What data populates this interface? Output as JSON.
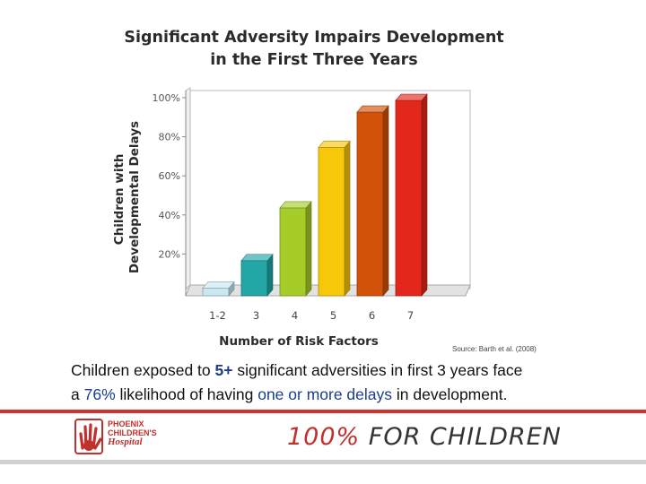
{
  "chart_data": {
    "type": "bar",
    "title": [
      "Significant Adversity Impairs Development",
      "in the First Three Years"
    ],
    "xlabel": "Number of Risk Factors",
    "ylabel": [
      "Children with",
      "Developmental Delays"
    ],
    "categories": [
      "1-2",
      "3",
      "4",
      "5",
      "6",
      "7"
    ],
    "values": [
      4,
      18,
      45,
      76,
      94,
      100
    ],
    "y_ticks": [
      "20%",
      "40%",
      "60%",
      "80%",
      "100%"
    ],
    "ylim": [
      0,
      100
    ],
    "colors": [
      "#c9e8f2",
      "#22a6a6",
      "#a6cc2a",
      "#f7c80a",
      "#d2520a",
      "#e4271b"
    ],
    "style": "3d",
    "grid": false,
    "source": "Source: Barth et al. (2008)"
  },
  "caption": {
    "line1": [
      "Children exposed to ",
      "5+",
      " significant adversities in first 3 years face"
    ],
    "line2": [
      "a ",
      "76%",
      " likelihood of having ",
      "one or more delays",
      " in development."
    ]
  },
  "footer": {
    "logo": [
      "PHOENIX",
      "CHILDREN'S",
      "Hospital"
    ],
    "tagline_part1": "100%",
    "tagline_part2": " FOR CHILDREN"
  },
  "colors": {
    "brand_red": "#c0302d",
    "highlight_blue": "#1a3d8f"
  }
}
